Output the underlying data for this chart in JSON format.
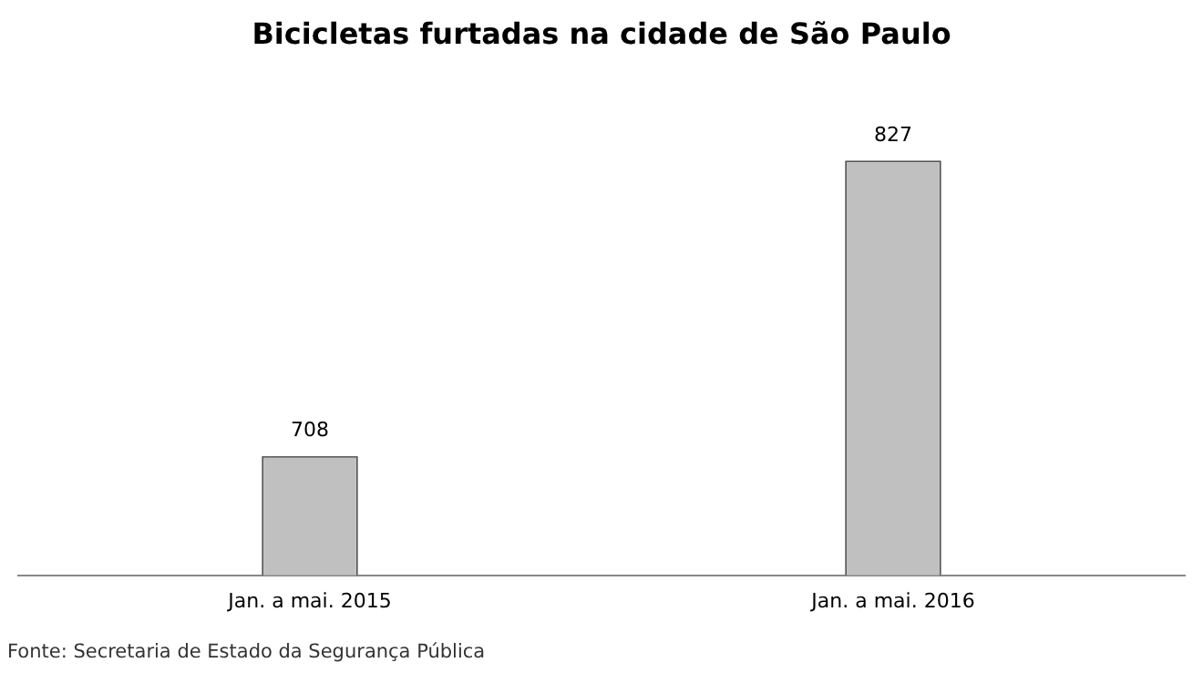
{
  "chart_data": {
    "type": "bar",
    "title": "Bicicletas furtadas na cidade de São Paulo",
    "categories": [
      "Jan. a mai. 2015",
      "Jan. a mai. 2016"
    ],
    "values": [
      708,
      827
    ],
    "color": "#c0c0c0",
    "tick_labels": "x",
    "grid": false,
    "legend": false,
    "data_labels": true,
    "annotations": [
      "Fonte: Secretaria de Estado da Segurança Pública"
    ]
  }
}
